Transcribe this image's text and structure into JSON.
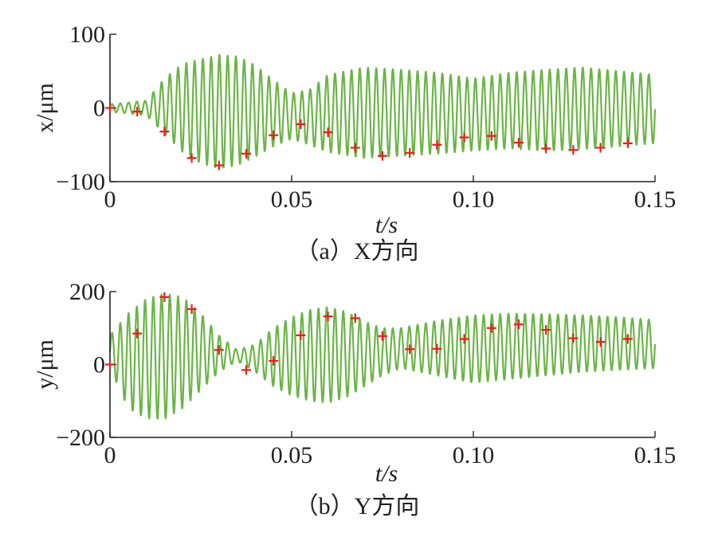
{
  "colors": {
    "signal": "#6ab545",
    "marker": "#e2231a",
    "axis": "#231f20"
  },
  "chart_data": [
    {
      "type": "line",
      "caption": "（a）X方向",
      "xlabel": "t/s",
      "ylabel": "x/μm",
      "xlim": [
        0,
        0.15
      ],
      "ylim": [
        -100,
        100
      ],
      "x_ticks": [
        0,
        0.05,
        0.1,
        0.15
      ],
      "x_tick_labels": [
        "0",
        "0.05",
        "0.10",
        "0.15"
      ],
      "y_ticks": [
        -100,
        0,
        100
      ],
      "y_tick_labels": [
        "−100",
        "0",
        "100"
      ],
      "grid": false,
      "series": [
        {
          "style": "oscillation",
          "frequency_hz": 440,
          "envelope_upper": [
            [
              0,
              5
            ],
            [
              0.01,
              10
            ],
            [
              0.015,
              40
            ],
            [
              0.02,
              60
            ],
            [
              0.03,
              72
            ],
            [
              0.035,
              70
            ],
            [
              0.04,
              58
            ],
            [
              0.045,
              38
            ],
            [
              0.05,
              20
            ],
            [
              0.055,
              25
            ],
            [
              0.06,
              45
            ],
            [
              0.07,
              55
            ],
            [
              0.08,
              52
            ],
            [
              0.09,
              48
            ],
            [
              0.1,
              40
            ],
            [
              0.11,
              48
            ],
            [
              0.12,
              52
            ],
            [
              0.13,
              55
            ],
            [
              0.14,
              50
            ],
            [
              0.15,
              45
            ]
          ],
          "envelope_lower": [
            [
              0,
              -5
            ],
            [
              0.01,
              -10
            ],
            [
              0.015,
              -35
            ],
            [
              0.02,
              -60
            ],
            [
              0.025,
              -75
            ],
            [
              0.03,
              -82
            ],
            [
              0.035,
              -78
            ],
            [
              0.04,
              -66
            ],
            [
              0.045,
              -52
            ],
            [
              0.05,
              -42
            ],
            [
              0.055,
              -50
            ],
            [
              0.06,
              -60
            ],
            [
              0.07,
              -68
            ],
            [
              0.08,
              -65
            ],
            [
              0.09,
              -62
            ],
            [
              0.1,
              -58
            ],
            [
              0.11,
              -55
            ],
            [
              0.12,
              -58
            ],
            [
              0.13,
              -56
            ],
            [
              0.14,
              -52
            ],
            [
              0.15,
              -48
            ]
          ]
        },
        {
          "style": "markers",
          "marker": "+",
          "x": [
            0,
            0.0075,
            0.015,
            0.0225,
            0.03,
            0.0375,
            0.045,
            0.0525,
            0.06,
            0.0675,
            0.075,
            0.0825,
            0.09,
            0.0975,
            0.105,
            0.1125,
            0.12,
            0.1275,
            0.135,
            0.1425
          ],
          "y": [
            0,
            -5,
            -32,
            -68,
            -78,
            -62,
            -37,
            -22,
            -33,
            -54,
            -65,
            -61,
            -50,
            -40,
            -38,
            -47,
            -55,
            -57,
            -54,
            -48
          ]
        }
      ]
    },
    {
      "type": "line",
      "caption": "（b）Y方向",
      "xlabel": "t/s",
      "ylabel": "y/μm",
      "xlim": [
        0,
        0.15
      ],
      "ylim": [
        -200,
        200
      ],
      "x_ticks": [
        0,
        0.05,
        0.1,
        0.15
      ],
      "x_tick_labels": [
        "0",
        "0.05",
        "0.10",
        "0.15"
      ],
      "y_ticks": [
        -200,
        0,
        200
      ],
      "y_tick_labels": [
        "−200",
        "0",
        "200"
      ],
      "grid": false,
      "series": [
        {
          "style": "oscillation",
          "frequency_hz": 440,
          "envelope_upper": [
            [
              0,
              80
            ],
            [
              0.005,
              140
            ],
            [
              0.01,
              180
            ],
            [
              0.015,
              195
            ],
            [
              0.02,
              185
            ],
            [
              0.025,
              140
            ],
            [
              0.03,
              80
            ],
            [
              0.035,
              40
            ],
            [
              0.04,
              55
            ],
            [
              0.045,
              100
            ],
            [
              0.05,
              130
            ],
            [
              0.055,
              150
            ],
            [
              0.06,
              158
            ],
            [
              0.065,
              145
            ],
            [
              0.07,
              118
            ],
            [
              0.075,
              100
            ],
            [
              0.08,
              100
            ],
            [
              0.09,
              120
            ],
            [
              0.1,
              135
            ],
            [
              0.11,
              140
            ],
            [
              0.12,
              138
            ],
            [
              0.13,
              135
            ],
            [
              0.14,
              130
            ],
            [
              0.15,
              122
            ]
          ],
          "envelope_lower": [
            [
              0,
              -10
            ],
            [
              0.005,
              -120
            ],
            [
              0.01,
              -148
            ],
            [
              0.015,
              -150
            ],
            [
              0.02,
              -120
            ],
            [
              0.025,
              -70
            ],
            [
              0.03,
              -20
            ],
            [
              0.035,
              10
            ],
            [
              0.04,
              -20
            ],
            [
              0.045,
              -60
            ],
            [
              0.05,
              -85
            ],
            [
              0.055,
              -100
            ],
            [
              0.06,
              -105
            ],
            [
              0.065,
              -90
            ],
            [
              0.07,
              -60
            ],
            [
              0.075,
              -30
            ],
            [
              0.08,
              -10
            ],
            [
              0.09,
              -30
            ],
            [
              0.1,
              -50
            ],
            [
              0.11,
              -40
            ],
            [
              0.12,
              -30
            ],
            [
              0.13,
              -20
            ],
            [
              0.14,
              -15
            ],
            [
              0.15,
              -10
            ]
          ]
        },
        {
          "style": "markers",
          "marker": "+",
          "x": [
            0,
            0.0075,
            0.015,
            0.0225,
            0.03,
            0.0375,
            0.045,
            0.0525,
            0.06,
            0.0675,
            0.075,
            0.0825,
            0.09,
            0.0975,
            0.105,
            0.1125,
            0.12,
            0.1275,
            0.135,
            0.1425
          ],
          "y": [
            0,
            85,
            185,
            152,
            40,
            -15,
            10,
            80,
            132,
            127,
            78,
            42,
            43,
            70,
            100,
            110,
            95,
            72,
            62,
            70
          ]
        }
      ]
    }
  ]
}
